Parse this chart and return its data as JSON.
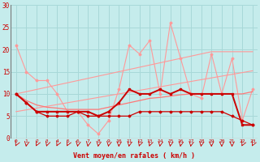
{
  "xlabel": "Vent moyen/en rafales ( km/h )",
  "background_color": "#c5ecec",
  "grid_color": "#a8d8d8",
  "x": [
    0,
    1,
    2,
    3,
    4,
    5,
    6,
    7,
    8,
    9,
    10,
    11,
    12,
    13,
    14,
    15,
    16,
    17,
    18,
    19,
    20,
    21,
    22,
    23
  ],
  "line_gust_raw": [
    21,
    15,
    13,
    13,
    10,
    null,
    null,
    null,
    1,
    4,
    11,
    21,
    19,
    22,
    10,
    26,
    18,
    null,
    9,
    19,
    null,
    18,
    4,
    11
  ],
  "line_mean_raw": [
    10,
    8,
    6,
    6,
    6,
    6,
    6,
    6,
    5,
    6,
    8,
    11,
    10,
    10,
    11,
    10,
    11,
    10,
    10,
    10,
    10,
    10,
    3,
    3
  ],
  "line_trend_upper": [
    10,
    10.5,
    11,
    11.5,
    12,
    12.5,
    13,
    13.5,
    14,
    14.5,
    15,
    15.5,
    16,
    16.5,
    17,
    17.5,
    18,
    18.5,
    19,
    19.5,
    19.5,
    19.5,
    19.5,
    19.5
  ],
  "line_trend_lower": [
    6,
    6.4,
    6.8,
    7.2,
    7.6,
    8.0,
    8.4,
    8.8,
    9.2,
    9.6,
    10.0,
    10.4,
    10.8,
    11.2,
    11.6,
    12.0,
    12.4,
    12.8,
    13.2,
    13.6,
    14.0,
    14.4,
    14.8,
    15.2
  ],
  "line_mean_smooth": [
    10,
    8.5,
    7.5,
    7,
    6.8,
    6.5,
    6.5,
    6.5,
    6.5,
    7,
    7.5,
    8,
    8.5,
    9,
    9.2,
    9.5,
    9.8,
    10,
    10,
    10,
    10,
    10,
    10,
    10.5
  ],
  "line_dark_low": [
    10,
    8,
    6,
    5,
    5,
    5,
    6,
    5,
    5,
    5,
    5,
    5,
    6,
    6,
    6,
    6,
    6,
    6,
    6,
    6,
    6,
    5,
    4,
    3
  ],
  "line_gust_all": [
    21,
    15,
    13,
    13,
    10,
    6,
    6,
    3,
    1,
    4,
    11,
    21,
    19,
    22,
    10,
    26,
    18,
    10,
    9,
    19,
    10,
    18,
    4,
    11
  ],
  "color_light_pink": "#ff9999",
  "color_salmon": "#ff7777",
  "color_dark_red": "#cc0000",
  "color_medium_red": "#ee3333"
}
